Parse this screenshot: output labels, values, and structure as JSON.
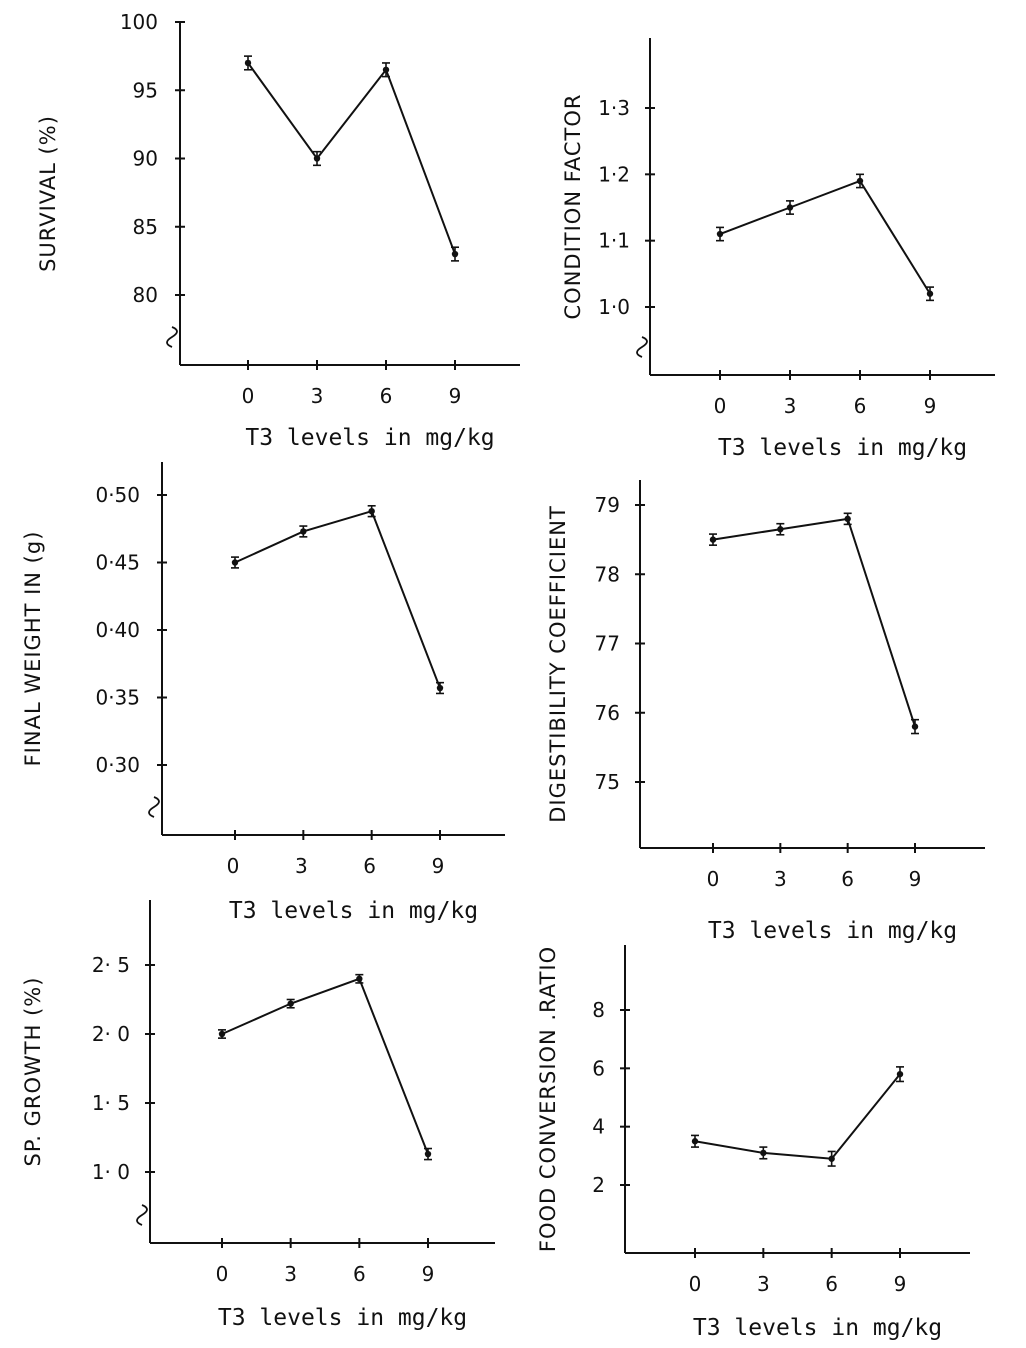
{
  "chart_data": [
    {
      "type": "line",
      "x": [
        0,
        3,
        6,
        9
      ],
      "x_tick_labels": [
        "0",
        "3",
        "6",
        "9"
      ],
      "xlabel": "T3 levels in mg/kg",
      "ylabel": "SURVIVAL (%)",
      "y_ticks": [
        80,
        85,
        90,
        95,
        100
      ],
      "y_tick_labels": [
        "80",
        "85",
        "90",
        "95",
        "100"
      ],
      "ylim": [
        75,
        100
      ],
      "series": [
        {
          "values": [
            97,
            90,
            96.5,
            83
          ],
          "errors": [
            0.5,
            0.5,
            0.5,
            0.5
          ]
        }
      ]
    },
    {
      "type": "line",
      "x": [
        0,
        3,
        6,
        9
      ],
      "x_tick_labels": [
        "0",
        "3",
        "6",
        "9"
      ],
      "xlabel": "T3 levels in mg/kg",
      "ylabel": "CONDITION FACTOR",
      "y_ticks": [
        1.0,
        1.1,
        1.2,
        1.3
      ],
      "y_tick_labels": [
        "1·0",
        "1·1",
        "1·2",
        "1·3"
      ],
      "ylim": [
        0.95,
        1.4
      ],
      "series": [
        {
          "values": [
            1.11,
            1.15,
            1.19,
            1.02
          ],
          "errors": [
            0.01,
            0.01,
            0.01,
            0.01
          ]
        }
      ]
    },
    {
      "type": "line",
      "x": [
        0,
        3,
        6,
        9
      ],
      "x_tick_labels": [
        "0",
        "3",
        "6",
        "9"
      ],
      "xlabel": "T3 levels in mg/kg",
      "ylabel": "FINAL WEIGHT IN (g)",
      "y_ticks": [
        0.3,
        0.35,
        0.4,
        0.45,
        0.5
      ],
      "y_tick_labels": [
        "0·30",
        "0·35",
        "0·40",
        "0·45",
        "0·50"
      ],
      "ylim": [
        0.25,
        0.52
      ],
      "series": [
        {
          "values": [
            0.45,
            0.473,
            0.488,
            0.357
          ],
          "errors": [
            0.004,
            0.004,
            0.004,
            0.004
          ]
        }
      ]
    },
    {
      "type": "line",
      "x": [
        0,
        3,
        6,
        9
      ],
      "x_tick_labels": [
        "0",
        "3",
        "6",
        "9"
      ],
      "xlabel": "T3 levels in mg/kg",
      "ylabel": "DIGESTIBILITY COEFFICIENT",
      "y_ticks": [
        75,
        76,
        77,
        78,
        79
      ],
      "y_tick_labels": [
        "75",
        "76",
        "77",
        "78",
        "79"
      ],
      "ylim": [
        74.5,
        79.2
      ],
      "series": [
        {
          "values": [
            78.5,
            78.65,
            78.8,
            75.8
          ],
          "errors": [
            0.08,
            0.08,
            0.08,
            0.1
          ]
        }
      ]
    },
    {
      "type": "line",
      "x": [
        0,
        3,
        6,
        9
      ],
      "x_tick_labels": [
        "0",
        "3",
        "6",
        "9"
      ],
      "xlabel": "T3 levels in mg/kg",
      "ylabel": "SP. GROWTH (%)",
      "y_ticks": [
        1.0,
        1.5,
        2.0,
        2.5
      ],
      "y_tick_labels": [
        "1· 0",
        "1· 5",
        "2· 0",
        "2· 5"
      ],
      "ylim": [
        0.75,
        2.9
      ],
      "series": [
        {
          "values": [
            2.0,
            2.22,
            2.4,
            1.13
          ],
          "errors": [
            0.03,
            0.03,
            0.03,
            0.04
          ]
        }
      ]
    },
    {
      "type": "line",
      "x": [
        0,
        3,
        6,
        9
      ],
      "x_tick_labels": [
        "0",
        "3",
        "6",
        "9"
      ],
      "xlabel": "T3 levels in mg/kg",
      "ylabel": "FOOD CONVERSION .RATIO",
      "y_ticks": [
        2,
        4,
        6,
        8
      ],
      "y_tick_labels": [
        "2",
        "4",
        "6",
        "8"
      ],
      "ylim": [
        0,
        9
      ],
      "series": [
        {
          "values": [
            3.5,
            3.1,
            2.9,
            5.8
          ],
          "errors": [
            0.2,
            0.2,
            0.25,
            0.25
          ]
        }
      ]
    }
  ]
}
